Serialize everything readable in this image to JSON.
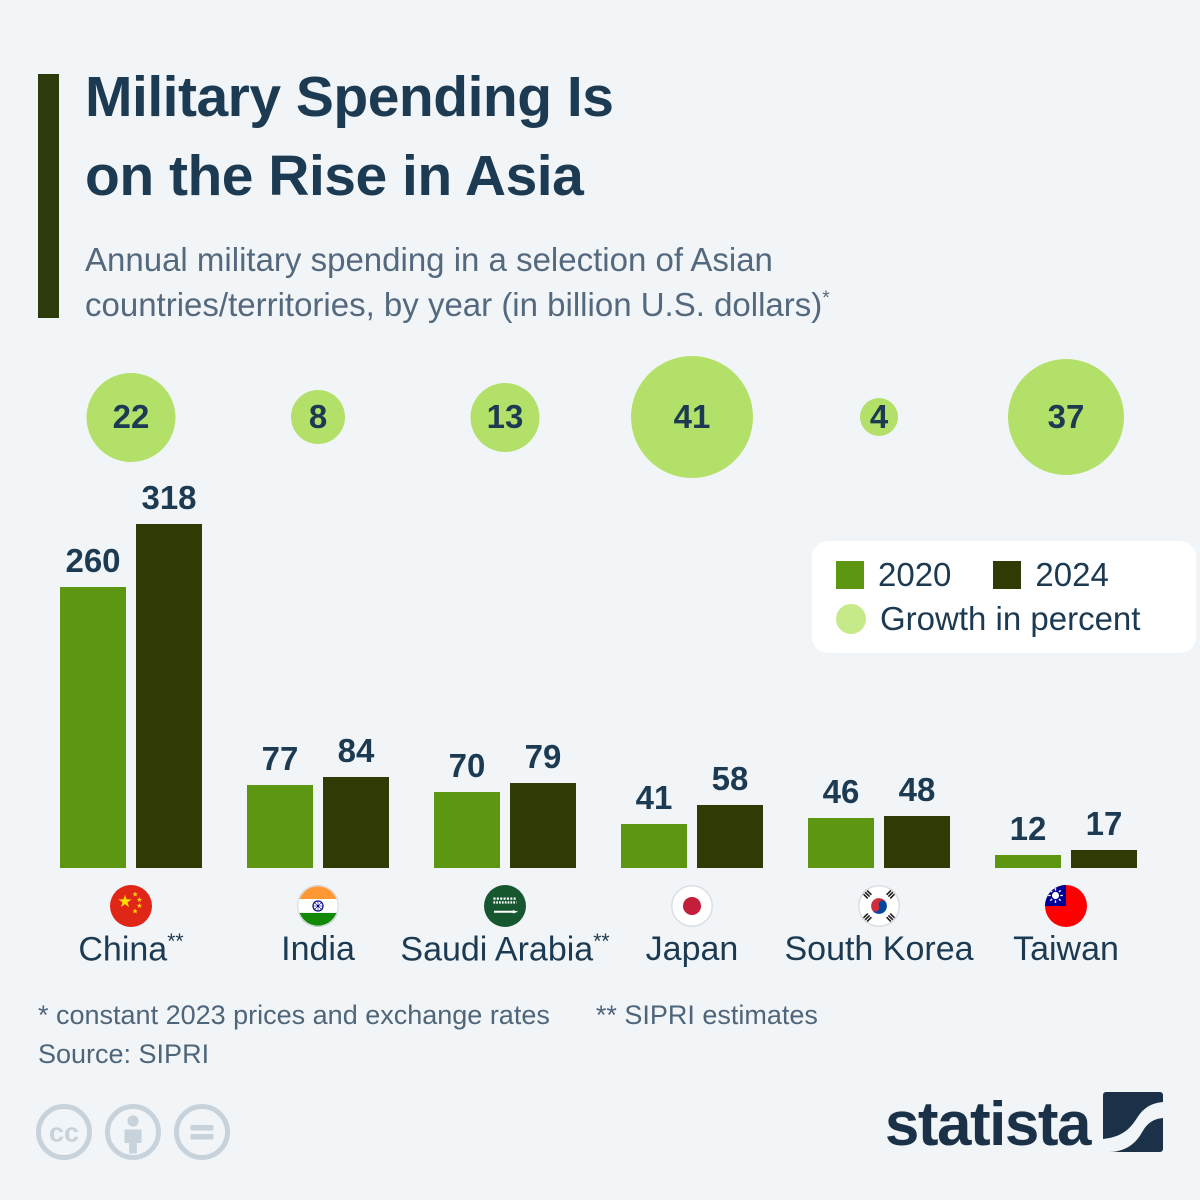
{
  "colors": {
    "background": "#f1f5f8",
    "title": "#1c3a52",
    "subtitle": "#55697e",
    "accent_bar": "#2d3a0b",
    "bar_2020": "#5d9711",
    "bar_2024": "#2e3b05",
    "growth_bubble": "#b3e069",
    "legend_growth_circle": "#c6ea89",
    "footnote_text": "#4f657a",
    "license_icon": "#c8d2db",
    "brand_navy": "#1b3148"
  },
  "header": {
    "title_lines": [
      "Military Spending Is",
      "on the Rise in Asia"
    ],
    "subtitle_line1": "Annual military spending in a selection of Asian",
    "subtitle_line2": "countries/territories, by year (in billion U.S. dollars)",
    "subtitle_marker": "*"
  },
  "legend": {
    "items": [
      {
        "label": "2020",
        "shape": "square",
        "color": "#5d9711"
      },
      {
        "label": "2024",
        "shape": "square",
        "color": "#2e3b05"
      },
      {
        "label": "Growth in percent",
        "shape": "circle",
        "color": "#c6ea89"
      }
    ]
  },
  "chart_data": {
    "type": "bar",
    "title": "Military Spending Is on the Rise in Asia",
    "subtitle": "Annual military spending in a selection of Asian countries/territories, by year (in billion U.S. dollars)*",
    "unit": "billion U.S. dollars",
    "categories": [
      "China**",
      "India",
      "Saudi Arabia**",
      "Japan",
      "South Korea",
      "Taiwan"
    ],
    "flags": [
      "china",
      "india",
      "saudi-arabia",
      "japan",
      "south-korea",
      "taiwan"
    ],
    "series": [
      {
        "name": "2020",
        "values": [
          260,
          77,
          70,
          41,
          46,
          12
        ],
        "color": "#5d9711"
      },
      {
        "name": "2024",
        "values": [
          318,
          84,
          79,
          58,
          48,
          17
        ],
        "color": "#2e3b05"
      }
    ],
    "growth_percent": {
      "label": "Growth in percent",
      "values": [
        22,
        8,
        13,
        41,
        4,
        37
      ],
      "color": "#b3e069",
      "bubble_sizing": "area proportional to value"
    },
    "legend_position": "right, above chart",
    "grid": false,
    "value_labels": true
  },
  "footnotes": {
    "note1": "* constant 2023 prices and exchange rates",
    "note2": "** SIPRI estimates",
    "source": "Source: SIPRI"
  },
  "footer": {
    "license_icons": [
      "creative-commons-icon",
      "attribution-person-icon",
      "equals-icon"
    ],
    "brand": "statista"
  }
}
